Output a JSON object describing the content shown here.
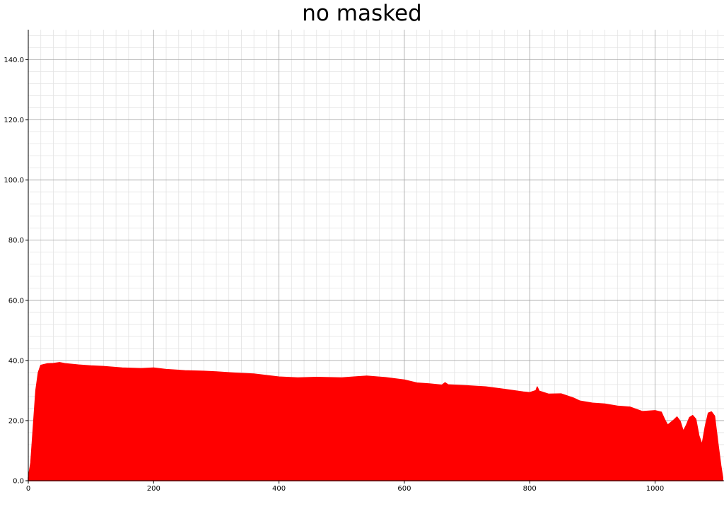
{
  "chart_data": {
    "type": "area",
    "title": "no masked",
    "xlabel": "",
    "ylabel": "",
    "xlim": [
      0,
      1110
    ],
    "ylim": [
      0,
      150
    ],
    "x_ticks": [
      0,
      200,
      400,
      600,
      800,
      1000
    ],
    "x_tick_labels": [
      "0",
      "200",
      "400",
      "600",
      "800",
      "1000"
    ],
    "y_ticks": [
      0,
      20,
      40,
      60,
      80,
      100,
      120,
      140
    ],
    "y_tick_labels": [
      "0.0",
      "20.0",
      "40.0",
      "60.0",
      "80.0",
      "100.0",
      "120.0",
      "140.0"
    ],
    "grid": true,
    "series": [
      {
        "color": "#ff0000",
        "x": [
          0,
          4,
          8,
          12,
          16,
          20,
          30,
          40,
          50,
          60,
          80,
          100,
          120,
          150,
          180,
          200,
          220,
          250,
          280,
          300,
          330,
          360,
          400,
          430,
          460,
          500,
          540,
          570,
          600,
          620,
          640,
          660,
          665,
          670,
          700,
          730,
          760,
          790,
          800,
          810,
          812,
          815,
          830,
          850,
          870,
          880,
          900,
          920,
          940,
          960,
          980,
          1000,
          1010,
          1015,
          1020,
          1030,
          1035,
          1040,
          1045,
          1050,
          1055,
          1060,
          1065,
          1070,
          1075,
          1080,
          1085,
          1090,
          1095,
          1100,
          1105,
          1108
        ],
        "values": [
          1,
          6,
          18,
          30,
          36,
          38.4,
          38.9,
          39,
          39.3,
          38.9,
          38.5,
          38.2,
          38,
          37.5,
          37.3,
          37.5,
          37,
          36.6,
          36.4,
          36.2,
          35.8,
          35.5,
          34.5,
          34.2,
          34.4,
          34.2,
          34.8,
          34.3,
          33.5,
          32.5,
          32.2,
          31.8,
          32.6,
          31.9,
          31.6,
          31.2,
          30.4,
          29.5,
          29.3,
          30,
          31.2,
          29.8,
          28.8,
          28.9,
          27.5,
          26.5,
          25.8,
          25.5,
          24.8,
          24.5,
          23,
          23.3,
          22.8,
          20.5,
          18.5,
          20.2,
          21.2,
          19.8,
          16.5,
          18.5,
          21,
          21.7,
          20.5,
          15,
          12,
          18,
          22.5,
          22.9,
          21.5,
          13,
          5,
          1
        ]
      }
    ]
  }
}
